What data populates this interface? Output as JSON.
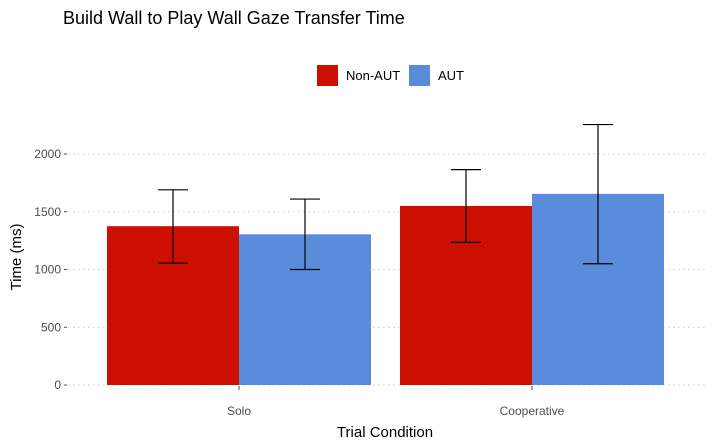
{
  "chart_data": {
    "type": "bar",
    "title": "Build Wall to Play Wall Gaze Transfer Time",
    "xlabel": "Trial Condition",
    "ylabel": "Time (ms)",
    "categories": [
      "Solo",
      "Cooperative"
    ],
    "series": [
      {
        "name": "Non-AUT",
        "color": "#cc0f00",
        "values": [
          1375,
          1550
        ],
        "error_low": [
          1055,
          1235
        ],
        "error_high": [
          1690,
          1865
        ]
      },
      {
        "name": "AUT",
        "color": "#5b8bdb",
        "values": [
          1305,
          1655
        ],
        "error_low": [
          1000,
          1050
        ],
        "error_high": [
          1610,
          2255
        ]
      }
    ],
    "yticks": [
      0,
      500,
      1000,
      1500,
      2000
    ],
    "ylim": [
      0,
      2300
    ],
    "grid": "horizontal-dotted",
    "legend_position": "top-center"
  }
}
